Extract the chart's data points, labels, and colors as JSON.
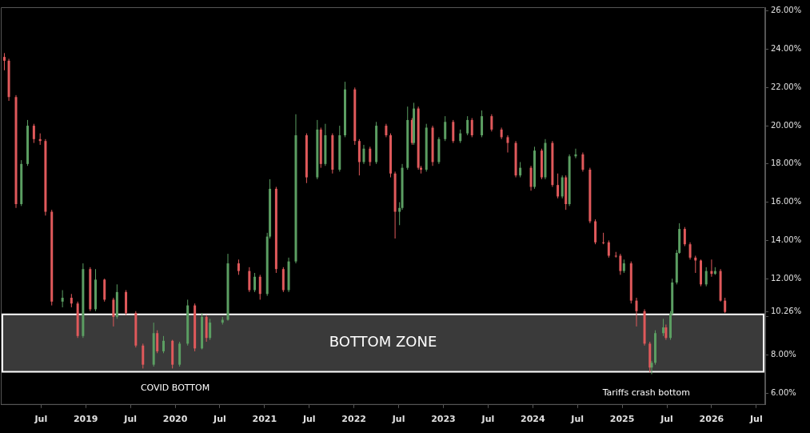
{
  "chart_data": {
    "type": "candlestick",
    "x": [
      2018.09,
      2018.14,
      2018.22,
      2018.28,
      2018.35,
      2018.42,
      2018.49,
      2018.55,
      2018.62,
      2018.74,
      2018.84,
      2018.91,
      2018.97,
      2019.05,
      2019.11,
      2019.21,
      2019.31,
      2019.35,
      2019.45,
      2019.56,
      2019.64,
      2019.76,
      2019.8,
      2019.87,
      2019.97,
      2020.05,
      2020.14,
      2020.22,
      2020.3,
      2020.35,
      2020.39,
      2020.53,
      2020.59,
      2020.71,
      2020.83,
      2020.89,
      2020.95,
      2021.03,
      2021.06,
      2021.13,
      2021.21,
      2021.27,
      2021.35,
      2021.47,
      2021.59,
      2021.63,
      2021.68,
      2021.76,
      2021.84,
      2021.9,
      2022.01,
      2022.06,
      2022.11,
      2022.18,
      2022.25,
      2022.36,
      2022.41,
      2022.46,
      2022.51,
      2022.54,
      2022.6,
      2022.65,
      2022.67,
      2022.72,
      2022.75,
      2022.81,
      2022.88,
      2022.95,
      2023.02,
      2023.11,
      2023.19,
      2023.27,
      2023.32,
      2023.43,
      2023.54,
      2023.65,
      2023.72,
      2023.81,
      2023.86,
      2023.98,
      2024.02,
      2024.1,
      2024.14,
      2024.22,
      2024.28,
      2024.33,
      2024.37,
      2024.41,
      2024.48,
      2024.56,
      2024.64,
      2024.7,
      2024.79,
      2024.85,
      2024.93,
      2024.98,
      2025.02,
      2025.1,
      2025.16,
      2025.25,
      2025.31,
      2025.33,
      2025.37,
      2025.46,
      2025.49,
      2025.54,
      2025.56,
      2025.61,
      2025.64,
      2025.7,
      2025.76,
      2025.82,
      2025.88,
      2025.94,
      2026.0,
      2026.04,
      2026.1,
      2026.15
    ],
    "ohlc": [
      [
        23.6,
        23.8,
        22.9,
        23.4
      ],
      [
        23.4,
        23.5,
        21.3,
        21.5
      ],
      [
        21.5,
        21.6,
        15.7,
        15.9
      ],
      [
        15.9,
        18.2,
        15.8,
        18.0
      ],
      [
        18.0,
        20.3,
        17.9,
        20.0
      ],
      [
        20.0,
        20.1,
        19.1,
        19.3
      ],
      [
        19.3,
        19.6,
        19.0,
        19.2
      ],
      [
        19.2,
        19.3,
        15.3,
        15.5
      ],
      [
        15.5,
        15.6,
        10.6,
        10.8
      ],
      [
        10.8,
        11.4,
        10.5,
        11.0
      ],
      [
        11.0,
        11.2,
        10.5,
        10.7
      ],
      [
        10.7,
        10.8,
        8.9,
        9.0
      ],
      [
        9.0,
        12.8,
        8.9,
        12.5
      ],
      [
        12.5,
        12.6,
        10.3,
        10.4
      ],
      [
        10.4,
        12.5,
        10.3,
        11.95
      ],
      [
        11.95,
        12.0,
        10.8,
        10.9
      ],
      [
        10.9,
        11.0,
        9.5,
        10.0
      ],
      [
        10.0,
        11.7,
        9.9,
        11.3
      ],
      [
        11.3,
        11.4,
        10.1,
        10.2
      ],
      [
        10.2,
        10.3,
        8.4,
        8.5
      ],
      [
        8.5,
        8.6,
        7.3,
        7.5
      ],
      [
        7.5,
        9.7,
        7.4,
        9.15
      ],
      [
        9.15,
        9.3,
        8.1,
        8.2
      ],
      [
        8.2,
        9.0,
        8.1,
        8.75
      ],
      [
        8.75,
        8.8,
        7.3,
        7.5
      ],
      [
        7.5,
        8.7,
        7.4,
        8.6
      ],
      [
        8.6,
        10.9,
        8.5,
        10.6
      ],
      [
        10.6,
        10.7,
        8.2,
        8.35
      ],
      [
        8.35,
        10.2,
        8.3,
        10.0
      ],
      [
        10.0,
        10.1,
        8.7,
        8.9
      ],
      [
        8.9,
        9.9,
        8.8,
        9.7
      ],
      [
        9.7,
        10.0,
        9.6,
        9.85
      ],
      [
        9.85,
        13.3,
        9.8,
        12.8
      ],
      [
        12.8,
        13.0,
        12.2,
        12.4
      ],
      [
        12.4,
        12.6,
        11.3,
        11.4
      ],
      [
        11.4,
        12.3,
        11.3,
        12.1
      ],
      [
        12.1,
        12.2,
        10.9,
        11.2
      ],
      [
        11.2,
        14.4,
        11.1,
        14.2
      ],
      [
        14.2,
        17.2,
        14.1,
        16.7
      ],
      [
        16.7,
        16.8,
        12.3,
        12.5
      ],
      [
        12.5,
        12.6,
        11.3,
        11.4
      ],
      [
        11.4,
        13.1,
        11.3,
        12.9
      ],
      [
        12.9,
        20.6,
        12.8,
        19.5
      ],
      [
        19.5,
        19.6,
        17.0,
        17.3
      ],
      [
        17.3,
        20.3,
        17.2,
        19.8
      ],
      [
        19.8,
        19.9,
        17.8,
        18.0
      ],
      [
        18.0,
        20.1,
        17.9,
        19.5
      ],
      [
        19.5,
        19.6,
        17.5,
        17.7
      ],
      [
        17.7,
        20.0,
        17.6,
        19.5
      ],
      [
        19.5,
        22.3,
        19.4,
        21.9
      ],
      [
        21.9,
        22.0,
        19.0,
        19.2
      ],
      [
        19.2,
        19.3,
        17.4,
        18.1
      ],
      [
        18.1,
        19.0,
        18.0,
        18.8
      ],
      [
        18.8,
        18.9,
        17.9,
        18.1
      ],
      [
        18.1,
        20.2,
        18.0,
        20.0
      ],
      [
        20.0,
        20.1,
        19.4,
        19.5
      ],
      [
        19.5,
        19.6,
        17.3,
        17.5
      ],
      [
        17.5,
        17.6,
        14.1,
        15.5
      ],
      [
        15.5,
        16.0,
        14.8,
        15.7
      ],
      [
        15.7,
        18.0,
        15.6,
        17.8
      ],
      [
        17.8,
        21.0,
        17.7,
        20.3
      ],
      [
        20.3,
        20.4,
        19.0,
        19.1
      ],
      [
        19.1,
        21.2,
        19.0,
        20.9
      ],
      [
        20.9,
        21.0,
        17.7,
        17.8
      ],
      [
        17.8,
        17.9,
        17.5,
        17.7
      ],
      [
        17.7,
        20.1,
        17.6,
        19.9
      ],
      [
        19.9,
        20.0,
        17.9,
        18.1
      ],
      [
        18.1,
        19.4,
        18.0,
        19.3
      ],
      [
        19.3,
        20.5,
        19.2,
        20.2
      ],
      [
        20.2,
        20.3,
        19.1,
        19.2
      ],
      [
        19.2,
        19.8,
        19.1,
        19.6
      ],
      [
        19.6,
        20.5,
        19.5,
        20.3
      ],
      [
        20.3,
        20.4,
        19.4,
        19.5
      ],
      [
        19.5,
        20.8,
        19.4,
        20.5
      ],
      [
        20.5,
        20.6,
        19.7,
        19.8
      ],
      [
        19.8,
        19.9,
        19.3,
        19.4
      ],
      [
        19.4,
        19.5,
        18.6,
        19.1
      ],
      [
        19.1,
        19.2,
        17.3,
        17.4
      ],
      [
        17.4,
        18.1,
        17.3,
        17.8
      ],
      [
        17.8,
        17.9,
        16.6,
        16.8
      ],
      [
        16.8,
        18.9,
        16.7,
        18.7
      ],
      [
        18.7,
        18.8,
        17.2,
        17.3
      ],
      [
        17.3,
        19.3,
        17.2,
        19.1
      ],
      [
        19.1,
        19.2,
        16.8,
        16.9
      ],
      [
        16.9,
        17.5,
        16.2,
        16.3
      ],
      [
        16.3,
        17.4,
        16.2,
        17.3
      ],
      [
        17.3,
        17.4,
        15.6,
        15.9
      ],
      [
        15.9,
        18.5,
        15.8,
        18.4
      ],
      [
        18.4,
        18.8,
        18.3,
        18.5
      ],
      [
        18.5,
        18.6,
        17.6,
        17.7
      ],
      [
        17.7,
        17.8,
        14.9,
        15.0
      ],
      [
        15.0,
        15.1,
        13.8,
        13.9
      ],
      [
        13.9,
        14.4,
        13.8,
        13.9
      ],
      [
        13.9,
        14.0,
        13.1,
        13.2
      ],
      [
        13.2,
        13.4,
        13.1,
        13.2
      ],
      [
        13.2,
        13.3,
        12.2,
        12.4
      ],
      [
        12.4,
        13.0,
        12.3,
        12.8
      ],
      [
        12.8,
        12.9,
        10.7,
        10.85
      ],
      [
        10.85,
        11.0,
        9.5,
        10.3
      ],
      [
        10.3,
        10.4,
        8.5,
        8.6
      ],
      [
        8.6,
        8.7,
        7.1,
        7.35
      ],
      [
        7.35,
        7.7,
        7.0,
        7.6
      ],
      [
        7.6,
        9.3,
        7.5,
        9.15
      ],
      [
        9.15,
        9.9,
        9.0,
        9.45
      ],
      [
        9.45,
        9.6,
        8.8,
        8.9
      ],
      [
        8.9,
        10.3,
        8.8,
        10.15
      ],
      [
        10.15,
        12.0,
        10.1,
        11.8
      ],
      [
        11.8,
        13.5,
        11.7,
        13.35
      ],
      [
        13.35,
        14.9,
        13.3,
        14.6
      ],
      [
        14.6,
        14.7,
        13.7,
        13.8
      ],
      [
        13.8,
        13.9,
        13.0,
        13.1
      ],
      [
        13.1,
        13.2,
        12.3,
        12.95
      ],
      [
        12.95,
        13.0,
        11.6,
        11.7
      ],
      [
        11.7,
        12.6,
        11.6,
        12.4
      ],
      [
        12.4,
        13.0,
        12.1,
        12.25
      ],
      [
        12.25,
        12.6,
        12.2,
        12.4
      ],
      [
        12.4,
        12.5,
        10.8,
        10.85
      ],
      [
        10.85,
        11.0,
        10.2,
        10.26
      ]
    ],
    "colors": [
      "#e0595b",
      "#e0595b",
      "#e0595b",
      "#5b9e62",
      "#5b9e62",
      "#e0595b",
      "#e0595b",
      "#e0595b",
      "#e0595b",
      "#5b9e62",
      "#e0595b",
      "#e0595b",
      "#5b9e62",
      "#e0595b",
      "#5b9e62",
      "#e0595b",
      "#e0595b",
      "#5b9e62",
      "#e0595b",
      "#e0595b",
      "#e0595b",
      "#5b9e62",
      "#e0595b",
      "#5b9e62",
      "#e0595b",
      "#5b9e62",
      "#5b9e62",
      "#e0595b",
      "#5b9e62",
      "#e0595b",
      "#5b9e62",
      "#5b9e62",
      "#5b9e62",
      "#e0595b",
      "#e0595b",
      "#5b9e62",
      "#e0595b",
      "#5b9e62",
      "#5b9e62",
      "#e0595b",
      "#e0595b",
      "#5b9e62",
      "#5b9e62",
      "#e0595b",
      "#5b9e62",
      "#e0595b",
      "#5b9e62",
      "#e0595b",
      "#5b9e62",
      "#5b9e62",
      "#e0595b",
      "#e0595b",
      "#5b9e62",
      "#e0595b",
      "#5b9e62",
      "#e0595b",
      "#e0595b",
      "#e0595b",
      "#5b9e62",
      "#5b9e62",
      "#5b9e62",
      "#e0595b",
      "#5b9e62",
      "#e0595b",
      "#e0595b",
      "#5b9e62",
      "#e0595b",
      "#5b9e62",
      "#5b9e62",
      "#e0595b",
      "#5b9e62",
      "#5b9e62",
      "#e0595b",
      "#5b9e62",
      "#e0595b",
      "#e0595b",
      "#e0595b",
      "#e0595b",
      "#5b9e62",
      "#e0595b",
      "#5b9e62",
      "#e0595b",
      "#5b9e62",
      "#e0595b",
      "#e0595b",
      "#5b9e62",
      "#e0595b",
      "#5b9e62",
      "#5b9e62",
      "#e0595b",
      "#e0595b",
      "#e0595b",
      "#e0595b",
      "#e0595b",
      "#e0595b",
      "#e0595b",
      "#5b9e62",
      "#e0595b",
      "#e0595b",
      "#e0595b",
      "#e0595b",
      "#5b9e62",
      "#5b9e62",
      "#5b9e62",
      "#e0595b",
      "#5b9e62",
      "#5b9e62",
      "#5b9e62",
      "#5b9e62",
      "#e0595b",
      "#e0595b",
      "#e0595b",
      "#e0595b",
      "#5b9e62",
      "#e0595b",
      "#5b9e62",
      "#e0595b",
      "#e0595b"
    ],
    "xlim": [
      2018.05,
      2026.6
    ],
    "xticks": [
      {
        "value": 2018.5,
        "label": "Jul"
      },
      {
        "value": 2019,
        "label": "2019"
      },
      {
        "value": 2019.5,
        "label": "Jul"
      },
      {
        "value": 2020,
        "label": "2020"
      },
      {
        "value": 2020.5,
        "label": "Jul"
      },
      {
        "value": 2021,
        "label": "2021"
      },
      {
        "value": 2021.5,
        "label": "Jul"
      },
      {
        "value": 2022,
        "label": "2022"
      },
      {
        "value": 2022.5,
        "label": "Jul"
      },
      {
        "value": 2023,
        "label": "2023"
      },
      {
        "value": 2023.5,
        "label": "Jul"
      },
      {
        "value": 2024,
        "label": "2024"
      },
      {
        "value": 2024.5,
        "label": "Jul"
      },
      {
        "value": 2025,
        "label": "2025"
      },
      {
        "value": 2025.5,
        "label": "Jul"
      },
      {
        "value": 2026,
        "label": "2026"
      },
      {
        "value": 2026.5,
        "label": "Jul"
      }
    ],
    "ylim": [
      5.4,
      26.2
    ],
    "yticks": [
      {
        "value": 6,
        "label": "6.00%"
      },
      {
        "value": 8,
        "label": "8.00%"
      },
      {
        "value": 10,
        "label": null
      },
      {
        "value": 10.26,
        "label": "10.26%"
      },
      {
        "value": 12,
        "label": "12.00%"
      },
      {
        "value": 14,
        "label": "14.00%"
      },
      {
        "value": 16,
        "label": "16.00%"
      },
      {
        "value": 18,
        "label": "18.00%"
      },
      {
        "value": 20,
        "label": "20.00%"
      },
      {
        "value": 22,
        "label": "22.00%"
      },
      {
        "value": 24,
        "label": "24.00%"
      },
      {
        "value": 26,
        "label": "26.00%"
      }
    ],
    "bands": [
      {
        "axis": "y",
        "from": 7.13,
        "to": 10.13,
        "label": "BOTTOM ZONE",
        "color": "#3a3a3a"
      }
    ],
    "annotations": [
      {
        "text": "COVID BOTTOM",
        "x": 2020.0,
        "y": 7.25
      },
      {
        "text": "Tariffs crash bottom",
        "x": 2025.27,
        "y": 7.0
      }
    ],
    "grid": false,
    "legend": false
  }
}
